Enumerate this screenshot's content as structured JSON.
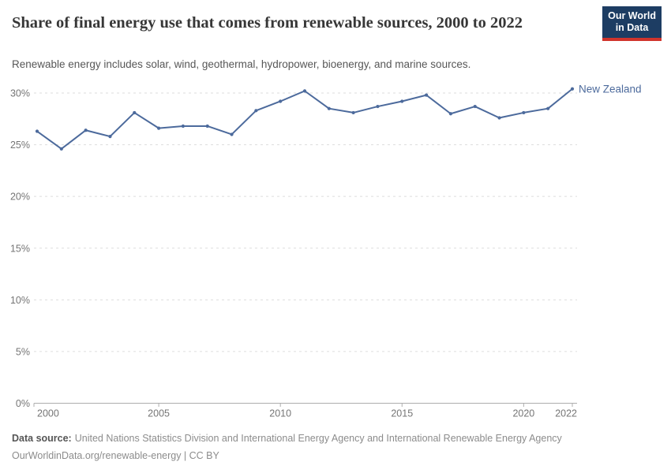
{
  "header": {
    "title": "Share of final energy use that comes from renewable sources, 2000 to 2022",
    "subtitle": "Renewable energy includes solar, wind, geothermal, hydropower, bioenergy, and marine sources.",
    "logo_line1": "Our World",
    "logo_line2": "in Data"
  },
  "chart_data": {
    "type": "line",
    "title": "Share of final energy use that comes from renewable sources, 2000 to 2022",
    "x": [
      2000,
      2001,
      2002,
      2003,
      2004,
      2005,
      2006,
      2007,
      2008,
      2009,
      2010,
      2011,
      2012,
      2013,
      2014,
      2015,
      2016,
      2017,
      2018,
      2019,
      2020,
      2021,
      2022
    ],
    "series": [
      {
        "name": "New Zealand",
        "values": [
          26.3,
          24.6,
          26.4,
          25.8,
          28.1,
          26.6,
          26.8,
          26.8,
          26.0,
          28.3,
          29.2,
          30.2,
          28.5,
          28.1,
          28.7,
          29.2,
          29.8,
          28.0,
          28.7,
          27.6,
          28.1,
          28.5,
          30.4
        ]
      }
    ],
    "xlabel": "",
    "ylabel": "",
    "ylim": [
      0,
      30
    ],
    "yticks": [
      0,
      5,
      10,
      15,
      20,
      25,
      30
    ],
    "ytick_suffix": "%",
    "xticks": [
      2000,
      2005,
      2010,
      2015,
      2020,
      2022
    ],
    "grid": "horizontal-dashed",
    "legend_position": "end-of-line-label"
  },
  "footer": {
    "source_label": "Data source:",
    "source_text": "United Nations Statistics Division and International Energy Agency and International Renewable Energy Agency",
    "citation": "OurWorldinData.org/renewable-energy | CC BY"
  },
  "colors": {
    "line": "#4C6A9C",
    "grid": "#dddddd",
    "axis": "#adadad",
    "tick_text": "#757575",
    "title": "#373737",
    "subtitle": "#575757",
    "footer": "#8c8c8c",
    "logo_bg": "#1d3d63",
    "logo_red": "#d0342c"
  }
}
